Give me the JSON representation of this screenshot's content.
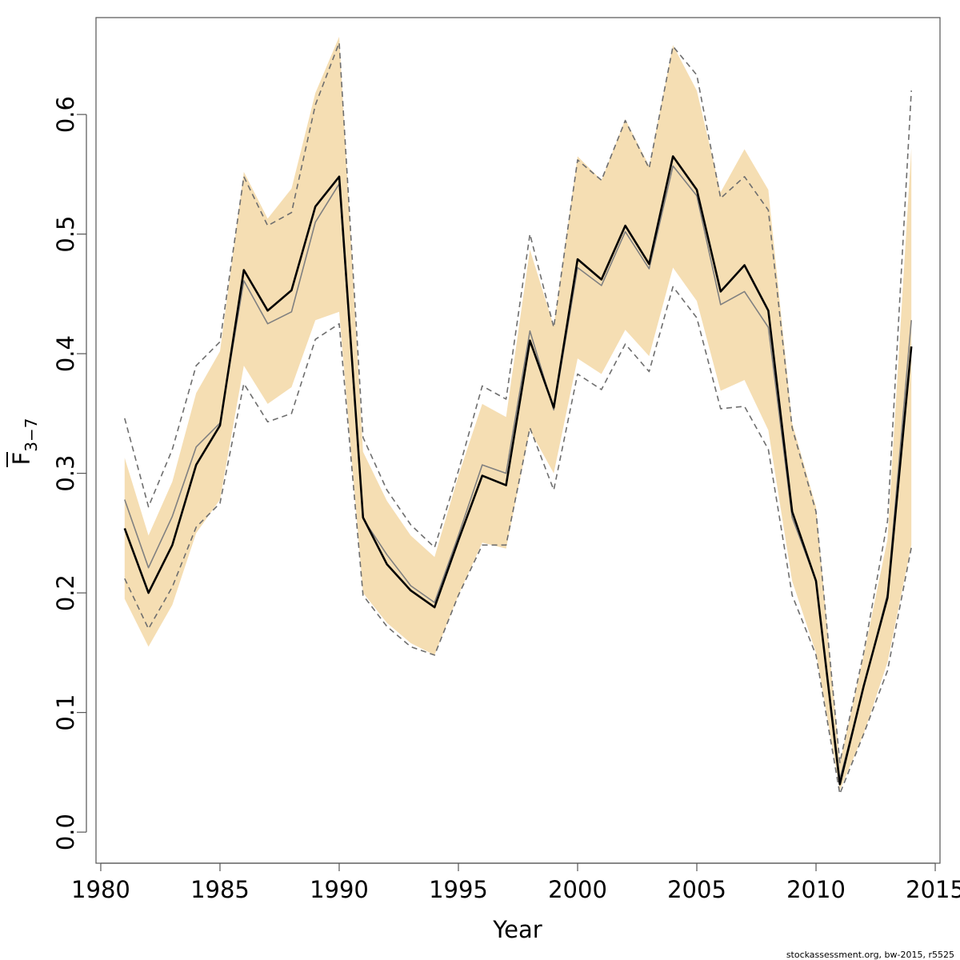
{
  "chart_data": {
    "type": "line",
    "xlabel": "Year",
    "ylabel": {
      "symbol": "F",
      "subscript": "3−7"
    },
    "xlim": [
      1979.8,
      2015.2
    ],
    "ylim": [
      -0.026,
      0.681
    ],
    "x_ticks": [
      1980,
      1985,
      1990,
      1995,
      2000,
      2005,
      2010,
      2015
    ],
    "x_tick_labels": [
      "1980",
      "1985",
      "1990",
      "1995",
      "2000",
      "2005",
      "2010",
      "2015"
    ],
    "y_ticks": [
      0.0,
      0.1,
      0.2,
      0.3,
      0.4,
      0.5,
      0.6
    ],
    "y_tick_labels": [
      "0.0",
      "0.1",
      "0.2",
      "0.3",
      "0.4",
      "0.5",
      "0.6"
    ],
    "grid": false,
    "colors": {
      "band": "#f5deb3",
      "main": "#000000",
      "secondary": "#808080",
      "dashed": "#6e6e6e",
      "frame": "#555555"
    },
    "x": [
      1981,
      1982,
      1983,
      1984,
      1985,
      1986,
      1987,
      1988,
      1989,
      1990,
      1991,
      1992,
      1993,
      1994,
      1995,
      1996,
      1997,
      1998,
      1999,
      2000,
      2001,
      2002,
      2003,
      2004,
      2005,
      2006,
      2007,
      2008,
      2009,
      2010,
      2011,
      2012,
      2013,
      2014
    ],
    "band": {
      "lower": [
        0.195,
        0.155,
        0.19,
        0.25,
        0.278,
        0.39,
        0.358,
        0.372,
        0.428,
        0.435,
        0.2,
        0.175,
        0.158,
        0.148,
        0.198,
        0.242,
        0.237,
        0.336,
        0.3,
        0.396,
        0.383,
        0.42,
        0.398,
        0.472,
        0.444,
        0.369,
        0.378,
        0.336,
        0.21,
        0.15,
        0.035,
        0.082,
        0.142,
        0.24
      ],
      "upper": [
        0.313,
        0.248,
        0.293,
        0.367,
        0.402,
        0.552,
        0.513,
        0.538,
        0.618,
        0.665,
        0.318,
        0.277,
        0.248,
        0.23,
        0.298,
        0.358,
        0.347,
        0.487,
        0.423,
        0.565,
        0.545,
        0.596,
        0.557,
        0.658,
        0.62,
        0.535,
        0.571,
        0.537,
        0.342,
        0.272,
        0.058,
        0.148,
        0.245,
        0.572
      ]
    },
    "series": [
      {
        "style": "thick-solid",
        "values": [
          0.254,
          0.2,
          0.24,
          0.307,
          0.34,
          0.47,
          0.436,
          0.453,
          0.523,
          0.548,
          0.263,
          0.224,
          0.202,
          0.188,
          0.244,
          0.298,
          0.29,
          0.411,
          0.355,
          0.479,
          0.462,
          0.507,
          0.475,
          0.565,
          0.537,
          0.452,
          0.474,
          0.436,
          0.268,
          0.21,
          0.04,
          0.122,
          0.196,
          0.406
        ]
      },
      {
        "style": "thin-solid",
        "values": [
          0.278,
          0.221,
          0.264,
          0.322,
          0.342,
          0.461,
          0.425,
          0.435,
          0.51,
          0.542,
          0.262,
          0.232,
          0.206,
          0.192,
          0.248,
          0.307,
          0.3,
          0.419,
          0.353,
          0.472,
          0.457,
          0.502,
          0.471,
          0.557,
          0.532,
          0.441,
          0.452,
          0.422,
          0.263,
          0.21,
          0.044,
          0.121,
          0.199,
          0.428
        ]
      },
      {
        "style": "dashed",
        "values": [
          0.346,
          0.272,
          0.32,
          0.39,
          0.41,
          0.548,
          0.507,
          0.518,
          0.608,
          0.66,
          0.33,
          0.286,
          0.257,
          0.238,
          0.302,
          0.373,
          0.362,
          0.5,
          0.422,
          0.562,
          0.545,
          0.595,
          0.555,
          0.657,
          0.633,
          0.53,
          0.548,
          0.52,
          0.338,
          0.268,
          0.058,
          0.15,
          0.26,
          0.62
        ]
      },
      {
        "style": "dashed",
        "values": [
          0.212,
          0.17,
          0.205,
          0.255,
          0.275,
          0.375,
          0.343,
          0.35,
          0.412,
          0.425,
          0.198,
          0.172,
          0.155,
          0.148,
          0.198,
          0.24,
          0.24,
          0.338,
          0.286,
          0.383,
          0.37,
          0.408,
          0.385,
          0.456,
          0.43,
          0.354,
          0.356,
          0.32,
          0.198,
          0.148,
          0.032,
          0.082,
          0.135,
          0.238
        ]
      }
    ]
  },
  "footer_text": "stockassessment.org, bw-2015, r5525"
}
